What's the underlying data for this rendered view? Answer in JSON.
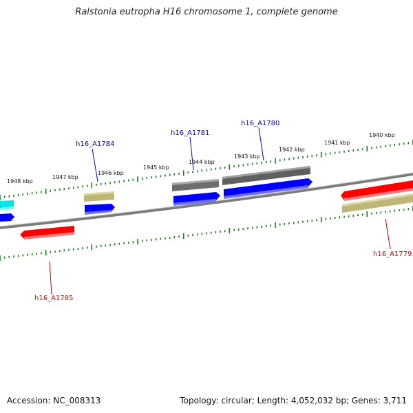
{
  "title": "Ralstonia eutropha H16 chromosome 1, complete genome",
  "accession_text": "Accession: NC_008313",
  "summary_text": "Topology: circular; Length: 4,052,032 bp; Genes: 3,711",
  "scale_labels": [
    "1948 kbp",
    "1947 kbp",
    "1946 kbp",
    "1945 kbp",
    "1944 kbp",
    "1943 kbp",
    "1942 kbp",
    "1941 kbp",
    "1940 kbp"
  ],
  "gene_labels_top": [
    "h16_A1784",
    "h16_A1781",
    "h16_A1780"
  ],
  "gene_labels_bottom": [
    "h16_A1785",
    "h16_A1779"
  ],
  "colors": {
    "top_label": "#0000cc",
    "bottom_label": "#cc0000",
    "forward_cds": "#0000ff",
    "reverse_cds": "#ff0000",
    "grey_feature": "#6e6e6e",
    "khaki_feature": "#bdb677",
    "cyan_feature": "#00ffff",
    "tick": "#1a7a1a",
    "backbone": "#8a8a8a"
  }
}
